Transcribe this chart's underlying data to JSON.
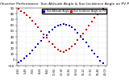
{
  "title": "Solar PV/Inverter Performance  Sun Altitude Angle & Sun Incidence Angle on PV Panels",
  "title_fontsize": 3.2,
  "legend_blue": "Sun Altitude Angle",
  "legend_red": "Sun Incidence Angle on PV",
  "blue_color": "#0000cc",
  "red_color": "#cc0000",
  "background_color": "#ffffff",
  "grid_color": "#aaaaaa",
  "ylim": [
    -10,
    90
  ],
  "yticks": [
    -10,
    0,
    10,
    20,
    30,
    40,
    50,
    60,
    70,
    80,
    90
  ],
  "ytick_fontsize": 2.8,
  "xtick_fontsize": 2.3,
  "time_hours": [
    4.5,
    5.0,
    5.5,
    6.0,
    6.5,
    7.0,
    7.5,
    8.0,
    8.5,
    9.0,
    9.5,
    10.0,
    10.5,
    11.0,
    11.5,
    12.0,
    12.5,
    13.0,
    13.5,
    14.0,
    14.5,
    15.0,
    15.5,
    16.0,
    16.5,
    17.0,
    17.5,
    18.0,
    18.5,
    19.0,
    19.5
  ],
  "sun_altitude": [
    -5,
    -2,
    2,
    6,
    11,
    16,
    22,
    27,
    33,
    38,
    43,
    48,
    52,
    56,
    59,
    61,
    62,
    61,
    59,
    56,
    52,
    47,
    42,
    36,
    30,
    24,
    17,
    11,
    5,
    -1,
    -6
  ],
  "sun_incidence": [
    88,
    85,
    82,
    78,
    73,
    68,
    62,
    56,
    50,
    44,
    38,
    32,
    27,
    22,
    18,
    15,
    14,
    16,
    19,
    23,
    28,
    34,
    40,
    46,
    53,
    60,
    67,
    73,
    79,
    85,
    89
  ],
  "xtick_labels": [
    "4:30",
    "5:48",
    "7:06",
    "8:24",
    "9:42",
    "11:00",
    "12:18",
    "13:36",
    "14:54",
    "16:12",
    "17:30",
    "18:48",
    "20:06"
  ]
}
